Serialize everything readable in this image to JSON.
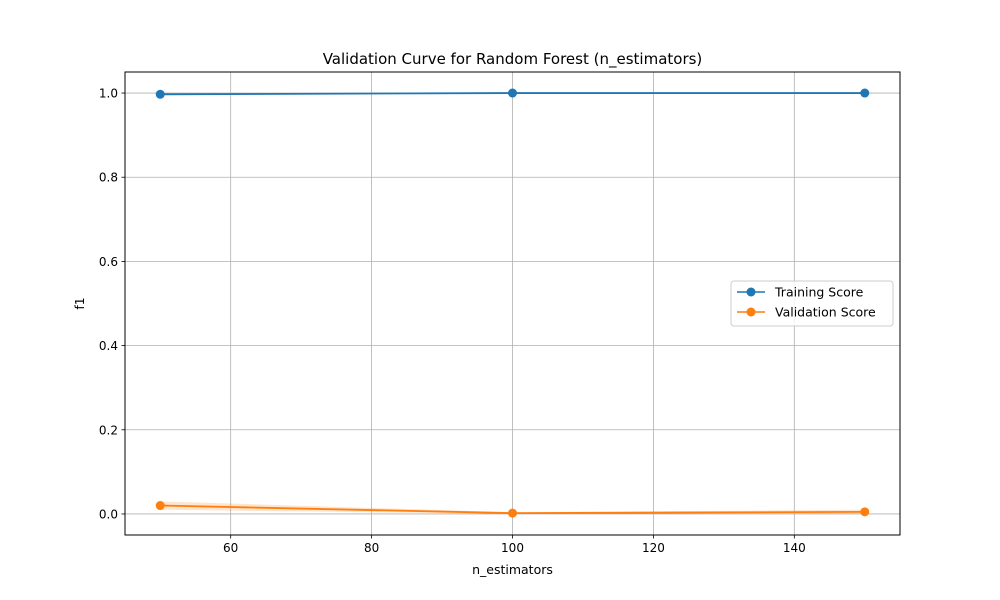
{
  "chart_data": {
    "type": "line",
    "title": "Validation Curve for Random Forest (n_estimators)",
    "xlabel": "n_estimators",
    "ylabel": "f1",
    "x": [
      50,
      100,
      150
    ],
    "xlim": [
      45,
      155
    ],
    "ylim": [
      -0.05,
      1.05
    ],
    "xticks": [
      60,
      80,
      100,
      120,
      140
    ],
    "yticks": [
      0.0,
      0.2,
      0.4,
      0.6,
      0.8,
      1.0
    ],
    "xtick_labels": [
      "60",
      "80",
      "100",
      "120",
      "140"
    ],
    "ytick_labels": [
      "0.0",
      "0.2",
      "0.4",
      "0.6",
      "0.8",
      "1.0"
    ],
    "grid": true,
    "legend_position": "center-right",
    "series": [
      {
        "name": "Training Score",
        "color": "#1f77b4",
        "marker": "circle",
        "values": [
          0.997,
          1.0,
          1.0
        ],
        "band_lower": [
          0.996,
          1.0,
          1.0
        ],
        "band_upper": [
          0.998,
          1.0,
          1.0
        ]
      },
      {
        "name": "Validation Score",
        "color": "#ff7f0e",
        "marker": "circle",
        "values": [
          0.02,
          0.002,
          0.005
        ],
        "band_lower": [
          0.01,
          0.0,
          0.0
        ],
        "band_upper": [
          0.03,
          0.004,
          0.01
        ]
      }
    ]
  }
}
